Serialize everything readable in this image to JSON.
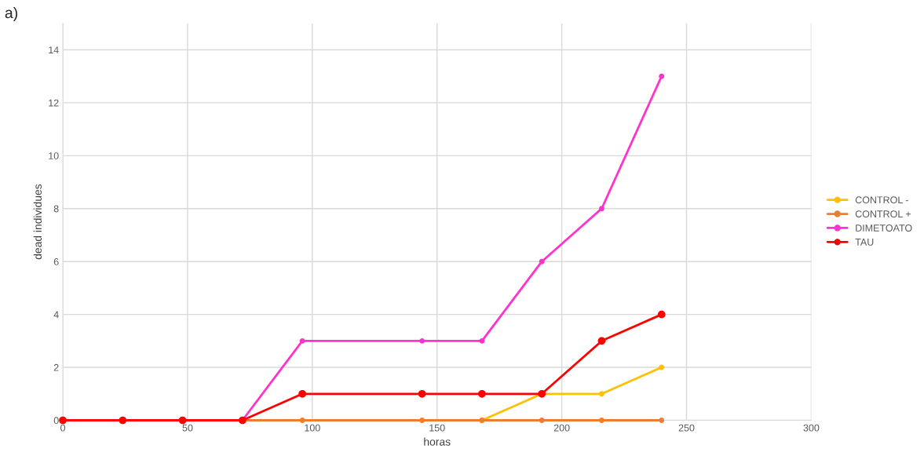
{
  "chart_data": {
    "type": "line",
    "xlabel": "horas",
    "ylabel": "dead individues",
    "annotations": [
      "a)"
    ],
    "x": [
      0,
      24,
      48,
      72,
      96,
      144,
      168,
      192,
      216,
      240
    ],
    "series": [
      {
        "name": "CONTROL -",
        "color": "#ffc000",
        "values": [
          null,
          null,
          null,
          null,
          null,
          null,
          0,
          1,
          1,
          2
        ]
      },
      {
        "name": "CONTROL +",
        "color": "#ed7d31",
        "values": [
          null,
          null,
          0,
          0,
          0,
          0,
          0,
          0,
          0,
          0
        ]
      },
      {
        "name": "DIMETOATO",
        "color": "#ff33cc",
        "values": [
          null,
          null,
          0,
          0,
          3,
          3,
          3,
          6,
          8,
          13
        ]
      },
      {
        "name": "TAU",
        "color": "#ff0000",
        "values": [
          0,
          0,
          0,
          0,
          1,
          1,
          1,
          1,
          3,
          4
        ]
      }
    ],
    "xlim": [
      0,
      300
    ],
    "xticks": [
      0,
      50,
      100,
      150,
      200,
      250,
      300
    ],
    "ylim": [
      0,
      15
    ],
    "yticks": [
      0,
      2,
      4,
      6,
      8,
      10,
      12,
      14
    ],
    "grid": true,
    "legend": "right",
    "marker": "circle",
    "line_style": "solid"
  }
}
